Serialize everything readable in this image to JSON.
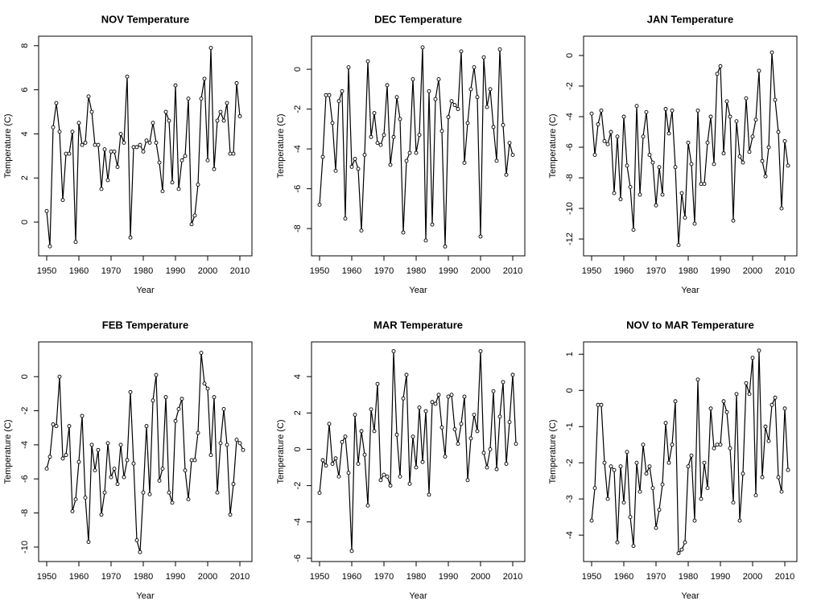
{
  "chart_data": [
    {
      "type": "line",
      "title": "NOV Temperature",
      "x_label": "Year",
      "y_label": "Temperature (C)",
      "color": "#000000",
      "x": [
        1950,
        1951,
        1952,
        1953,
        1954,
        1955,
        1956,
        1957,
        1958,
        1959,
        1960,
        1961,
        1962,
        1963,
        1964,
        1965,
        1966,
        1967,
        1968,
        1969,
        1970,
        1971,
        1972,
        1973,
        1974,
        1975,
        1976,
        1977,
        1978,
        1979,
        1980,
        1981,
        1982,
        1983,
        1984,
        1985,
        1986,
        1987,
        1988,
        1989,
        1990,
        1991,
        1992,
        1993,
        1994,
        1995,
        1996,
        1997,
        1998,
        1999,
        2000,
        2001,
        2002,
        2003,
        2004,
        2005,
        2006,
        2007,
        2008,
        2009,
        2010
      ],
      "values": [
        0.5,
        -1.1,
        4.3,
        5.4,
        4.1,
        1.0,
        3.1,
        3.1,
        4.1,
        -0.9,
        4.5,
        3.5,
        3.6,
        5.7,
        5.0,
        3.5,
        3.5,
        1.5,
        3.3,
        1.9,
        3.2,
        3.2,
        2.5,
        4.0,
        3.6,
        6.6,
        -0.7,
        3.4,
        3.4,
        3.5,
        3.2,
        3.7,
        3.6,
        4.5,
        3.6,
        2.7,
        1.4,
        5.0,
        4.6,
        1.8,
        6.2,
        1.5,
        2.8,
        3.0,
        5.6,
        -0.1,
        0.3,
        1.7,
        5.6,
        6.5,
        2.8,
        7.9,
        2.4,
        4.6,
        5.0,
        4.6,
        5.4,
        3.1,
        3.1,
        6.3,
        4.8
      ],
      "xlim": [
        1947.5,
        2013.75
      ],
      "xticks": [
        1950,
        1960,
        1970,
        1980,
        1990,
        2000,
        2010
      ],
      "ylim": [
        -1.53,
        8.43
      ],
      "yticks": [
        0,
        2,
        4,
        6,
        8
      ]
    },
    {
      "type": "line",
      "title": "DEC Temperature",
      "x_label": "Year",
      "y_label": "Temperature (C)",
      "color": "#000000",
      "x": [
        1950,
        1951,
        1952,
        1953,
        1954,
        1955,
        1956,
        1957,
        1958,
        1959,
        1960,
        1961,
        1962,
        1963,
        1964,
        1965,
        1966,
        1967,
        1968,
        1969,
        1970,
        1971,
        1972,
        1973,
        1974,
        1975,
        1976,
        1977,
        1978,
        1979,
        1980,
        1981,
        1982,
        1983,
        1984,
        1985,
        1986,
        1987,
        1988,
        1989,
        1990,
        1991,
        1992,
        1993,
        1994,
        1995,
        1996,
        1997,
        1998,
        1999,
        2000,
        2001,
        2002,
        2003,
        2004,
        2005,
        2006,
        2007,
        2008,
        2009,
        2010
      ],
      "values": [
        -6.8,
        -4.4,
        -1.3,
        -1.3,
        -2.7,
        -5.1,
        -1.6,
        -1.1,
        -7.5,
        0.1,
        -4.9,
        -4.5,
        -5.0,
        -8.1,
        -4.3,
        0.4,
        -3.4,
        -2.2,
        -3.7,
        -3.8,
        -3.3,
        -0.8,
        -4.8,
        -3.4,
        -1.4,
        -2.5,
        -8.2,
        -4.6,
        -4.2,
        -0.5,
        -4.2,
        -3.3,
        1.1,
        -8.6,
        -1.1,
        -7.8,
        -1.5,
        -0.5,
        -3.1,
        -8.9,
        -2.4,
        -1.6,
        -1.8,
        -2.0,
        0.9,
        -4.7,
        -2.7,
        -1.0,
        0.1,
        -1.4,
        -8.4,
        0.6,
        -1.9,
        -1.0,
        -2.9,
        -4.6,
        1.0,
        -2.8,
        -5.3,
        -3.7,
        -4.3
      ],
      "xlim": [
        1947.5,
        2013.75
      ],
      "xticks": [
        1950,
        1960,
        1970,
        1980,
        1990,
        2000,
        2010
      ],
      "ylim": [
        -9.37,
        1.66
      ],
      "yticks": [
        0,
        -2,
        -4,
        -6,
        -8
      ]
    },
    {
      "type": "line",
      "title": "JAN Temperature",
      "x_label": "Year",
      "y_label": "Temperature (C)",
      "color": "#000000",
      "x": [
        1950,
        1951,
        1952,
        1953,
        1954,
        1955,
        1956,
        1957,
        1958,
        1959,
        1960,
        1961,
        1962,
        1963,
        1964,
        1965,
        1966,
        1967,
        1968,
        1969,
        1970,
        1971,
        1972,
        1973,
        1974,
        1975,
        1976,
        1977,
        1978,
        1979,
        1980,
        1981,
        1982,
        1983,
        1984,
        1985,
        1986,
        1987,
        1988,
        1989,
        1990,
        1991,
        1992,
        1993,
        1994,
        1995,
        1996,
        1997,
        1998,
        1999,
        2000,
        2001,
        2002,
        2003,
        2004,
        2005,
        2006,
        2007,
        2008,
        2009,
        2010,
        2011
      ],
      "values": [
        -3.8,
        -6.5,
        -4.5,
        -3.6,
        -5.6,
        -5.8,
        -5.0,
        -9.0,
        -5.3,
        -9.4,
        -4.0,
        -7.2,
        -8.6,
        -11.4,
        -3.3,
        -9.1,
        -5.3,
        -3.7,
        -6.5,
        -7.0,
        -9.8,
        -7.3,
        -9.1,
        -3.5,
        -5.1,
        -3.6,
        -7.3,
        -12.4,
        -9.0,
        -10.6,
        -5.7,
        -7.1,
        -11.0,
        -3.6,
        -8.4,
        -8.4,
        -5.7,
        -4.0,
        -7.1,
        -1.2,
        -0.7,
        -6.4,
        -3.0,
        -4.0,
        -10.8,
        -4.3,
        -6.6,
        -7.0,
        -2.8,
        -6.3,
        -5.3,
        -4.2,
        -1.0,
        -6.9,
        -7.9,
        -6.0,
        0.2,
        -2.9,
        -5.0,
        -10.0,
        -5.6,
        -7.2
      ],
      "xlim": [
        1947.5,
        2013.75
      ],
      "xticks": [
        1950,
        1960,
        1970,
        1980,
        1990,
        2000,
        2010
      ],
      "ylim": [
        -13.1,
        1.26
      ],
      "yticks": [
        0,
        -2,
        -4,
        -6,
        -8,
        -10,
        -12
      ]
    },
    {
      "type": "line",
      "title": "FEB Temperature",
      "x_label": "Year",
      "y_label": "Temperature (C)",
      "color": "#000000",
      "x": [
        1950,
        1951,
        1952,
        1953,
        1954,
        1955,
        1956,
        1957,
        1958,
        1959,
        1960,
        1961,
        1962,
        1963,
        1964,
        1965,
        1966,
        1967,
        1968,
        1969,
        1970,
        1971,
        1972,
        1973,
        1974,
        1975,
        1976,
        1977,
        1978,
        1979,
        1980,
        1981,
        1982,
        1983,
        1984,
        1985,
        1986,
        1987,
        1988,
        1989,
        1990,
        1991,
        1992,
        1993,
        1994,
        1995,
        1996,
        1997,
        1998,
        1999,
        2000,
        2001,
        2002,
        2003,
        2004,
        2005,
        2006,
        2007,
        2008,
        2009,
        2010,
        2011
      ],
      "values": [
        -5.4,
        -4.7,
        -2.8,
        -2.9,
        0.0,
        -4.8,
        -4.6,
        -2.9,
        -7.9,
        -7.2,
        -5.0,
        -2.3,
        -7.1,
        -9.7,
        -4.0,
        -5.5,
        -4.3,
        -8.1,
        -6.8,
        -3.9,
        -5.9,
        -5.4,
        -6.3,
        -4.0,
        -5.9,
        -4.9,
        -0.9,
        -5.1,
        -9.6,
        -10.3,
        -6.8,
        -2.9,
        -6.9,
        -1.4,
        0.1,
        -6.1,
        -5.4,
        -1.2,
        -6.8,
        -7.4,
        -2.6,
        -1.9,
        -1.3,
        -5.5,
        -7.2,
        -4.9,
        -4.9,
        -3.3,
        1.4,
        -0.4,
        -0.7,
        -4.6,
        -1.2,
        -6.8,
        -3.9,
        -1.9,
        -4.0,
        -8.1,
        -6.3,
        -3.7,
        -3.9,
        -4.3
      ],
      "xlim": [
        1947.5,
        2013.75
      ],
      "xticks": [
        1950,
        1960,
        1970,
        1980,
        1990,
        2000,
        2010
      ],
      "ylim": [
        -10.85,
        2.04
      ],
      "yticks": [
        0,
        -2,
        -4,
        -6,
        -8,
        -10
      ]
    },
    {
      "type": "line",
      "title": "MAR Temperature",
      "x_label": "Year",
      "y_label": "Temperature (C)",
      "color": "#000000",
      "x": [
        1950,
        1951,
        1952,
        1953,
        1954,
        1955,
        1956,
        1957,
        1958,
        1959,
        1960,
        1961,
        1962,
        1963,
        1964,
        1965,
        1966,
        1967,
        1968,
        1969,
        1970,
        1971,
        1972,
        1973,
        1974,
        1975,
        1976,
        1977,
        1978,
        1979,
        1980,
        1981,
        1982,
        1983,
        1984,
        1985,
        1986,
        1987,
        1988,
        1989,
        1990,
        1991,
        1992,
        1993,
        1994,
        1995,
        1996,
        1997,
        1998,
        1999,
        2000,
        2001,
        2002,
        2003,
        2004,
        2005,
        2006,
        2007,
        2008,
        2009,
        2010,
        2011
      ],
      "values": [
        -2.4,
        -0.6,
        -0.9,
        1.4,
        -0.8,
        -0.5,
        -1.5,
        0.4,
        0.7,
        -1.3,
        -5.6,
        1.9,
        -0.8,
        1.0,
        -0.3,
        -3.1,
        2.2,
        1.0,
        3.6,
        -1.7,
        -1.4,
        -1.5,
        -2.0,
        5.4,
        0.8,
        -1.5,
        2.8,
        4.1,
        -1.9,
        0.7,
        -1.0,
        2.3,
        -0.7,
        2.1,
        -2.5,
        2.6,
        2.5,
        3.0,
        1.2,
        -0.4,
        2.9,
        3.0,
        1.1,
        0.3,
        1.4,
        2.9,
        -1.7,
        0.6,
        1.9,
        1.0,
        5.4,
        -0.2,
        -1.0,
        0.0,
        3.2,
        -1.1,
        1.8,
        3.7,
        -0.8,
        1.5,
        4.1,
        0.3
      ],
      "xlim": [
        1947.5,
        2013.75
      ],
      "xticks": [
        1950,
        1960,
        1970,
        1980,
        1990,
        2000,
        2010
      ],
      "ylim": [
        -6.18,
        5.91
      ],
      "yticks": [
        4,
        2,
        0,
        -2,
        -4,
        -6
      ]
    },
    {
      "type": "line",
      "title": "NOV to MAR Temperature",
      "x_label": "Year",
      "y_label": "Temperature (C)",
      "color": "#000000",
      "x": [
        1950,
        1951,
        1952,
        1953,
        1954,
        1955,
        1956,
        1957,
        1958,
        1959,
        1960,
        1961,
        1962,
        1963,
        1964,
        1965,
        1966,
        1967,
        1968,
        1969,
        1970,
        1971,
        1972,
        1973,
        1974,
        1975,
        1976,
        1977,
        1978,
        1979,
        1980,
        1981,
        1982,
        1983,
        1984,
        1985,
        1986,
        1987,
        1988,
        1989,
        1990,
        1991,
        1992,
        1993,
        1994,
        1995,
        1996,
        1997,
        1998,
        1999,
        2000,
        2001,
        2002,
        2003,
        2004,
        2005,
        2006,
        2007,
        2008,
        2009,
        2010,
        2011
      ],
      "values": [
        -3.6,
        -2.7,
        -0.4,
        -0.4,
        -2.0,
        -3.0,
        -2.1,
        -2.2,
        -4.2,
        -2.1,
        -3.1,
        -1.7,
        -3.5,
        -4.3,
        -2.0,
        -2.8,
        -1.5,
        -2.3,
        -2.1,
        -2.7,
        -3.8,
        -3.3,
        -2.6,
        -0.9,
        -2.0,
        -1.5,
        -0.3,
        -4.5,
        -4.4,
        -4.2,
        -2.1,
        -1.8,
        -3.6,
        0.3,
        -3.0,
        -2.0,
        -2.7,
        -0.5,
        -1.6,
        -1.5,
        -1.5,
        -0.3,
        -0.6,
        -1.6,
        -3.1,
        -0.1,
        -3.6,
        -2.3,
        0.2,
        -0.1,
        0.9,
        -2.9,
        1.1,
        -2.4,
        -1.0,
        -1.4,
        -0.4,
        -0.2,
        -2.4,
        -2.8,
        -0.5,
        -2.2
      ],
      "xlim": [
        1947.5,
        2013.75
      ],
      "xticks": [
        1950,
        1960,
        1970,
        1980,
        1990,
        2000,
        2010
      ],
      "ylim": [
        -4.73,
        1.34
      ],
      "yticks": [
        1,
        0,
        -1,
        -2,
        -3,
        -4
      ]
    }
  ]
}
